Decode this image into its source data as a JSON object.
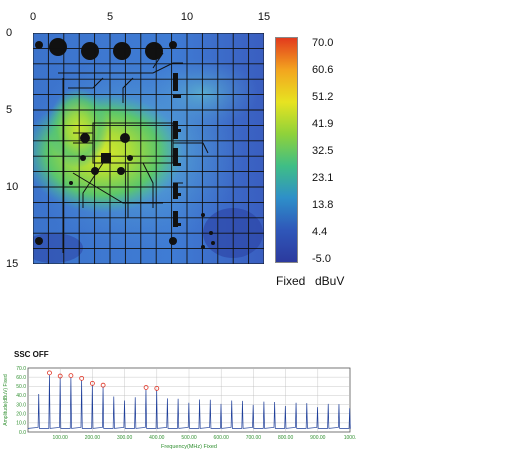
{
  "chart_data": [
    {
      "type": "heatmap",
      "title": "",
      "x_ticks": [
        "0",
        "5",
        "10",
        "15"
      ],
      "y_ticks": [
        "0",
        "5",
        "10",
        "15"
      ],
      "xlim": [
        0,
        15
      ],
      "ylim": [
        0,
        15
      ],
      "grid": true,
      "colorbar": {
        "labels": [
          "70.0",
          "60.6",
          "51.2",
          "41.9",
          "32.5",
          "23.1",
          "13.8",
          "4.4",
          "-5.0"
        ],
        "range": [
          -5.0,
          70.0
        ],
        "mode": "Fixed",
        "unit": "dBuV",
        "colors": [
          "#e23a1d",
          "#f3a51f",
          "#e7e321",
          "#8fd23a",
          "#3fbe86",
          "#2e8fc9",
          "#2f57b9",
          "#2c3a9e"
        ]
      },
      "hotspot": {
        "x": 4.5,
        "y": 7.0,
        "peak": 55
      }
    },
    {
      "type": "line",
      "title": "SSC OFF",
      "xlabel": "Frequency(MHz) Fixed",
      "ylabel": "Amplitude(dBuV) Fixed",
      "x_tick_labels": [
        "100.00",
        "200.00",
        "300.00",
        "400.00",
        "500.00",
        "600.00",
        "700.00",
        "800.00",
        "900.00",
        "1000."
      ],
      "y_tick_labels": [
        "70.0",
        "60.0",
        "50.0",
        "40.0",
        "30.0",
        "20.0",
        "10.0",
        "0.0"
      ],
      "xlim": [
        0,
        1000
      ],
      "ylim": [
        0,
        70
      ],
      "grid": true,
      "harmonic_spacing_mhz": 33.3,
      "peaks": [
        {
          "x": 66.7,
          "y": 62.5
        },
        {
          "x": 100.0,
          "y": 59.0
        },
        {
          "x": 133.3,
          "y": 59.5
        },
        {
          "x": 166.7,
          "y": 56.5
        },
        {
          "x": 200.0,
          "y": 51.0
        },
        {
          "x": 233.3,
          "y": 49.0
        },
        {
          "x": 366.7,
          "y": 46.5
        },
        {
          "x": 400.0,
          "y": 45.5
        }
      ],
      "line_color": "#1f3f9a",
      "marker_color": "#e03020",
      "axis_label_color": "#2f8f2f"
    }
  ]
}
